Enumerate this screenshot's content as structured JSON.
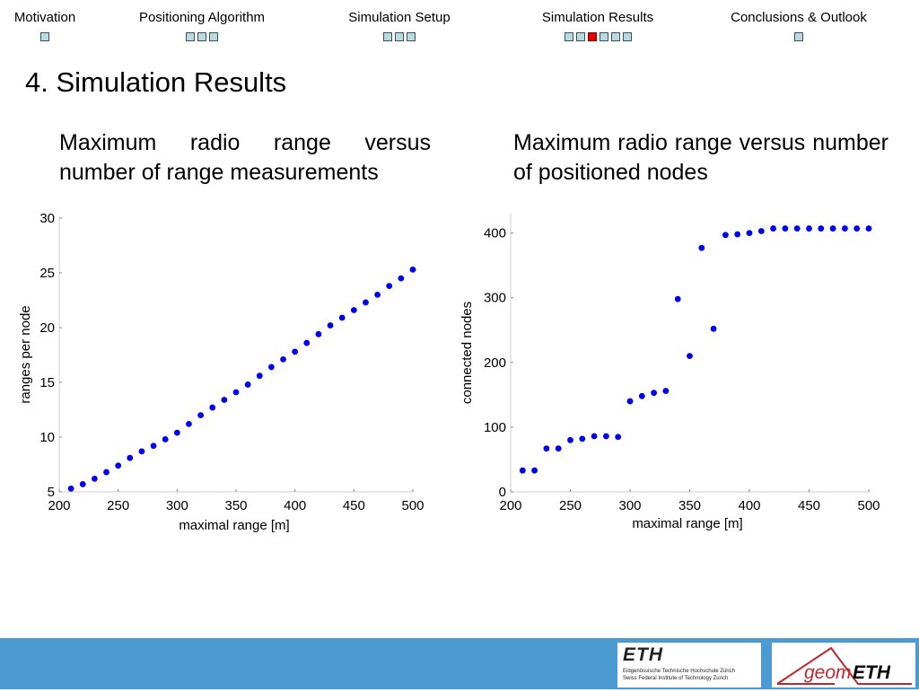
{
  "nav": {
    "sections": [
      {
        "label": "Motivation",
        "dots": 1,
        "active_dot": -1
      },
      {
        "label": "Positioning Algorithm",
        "dots": 3,
        "active_dot": -1
      },
      {
        "label": "Simulation Setup",
        "dots": 3,
        "active_dot": -1
      },
      {
        "label": "Simulation Results",
        "dots": 6,
        "active_dot": 2
      },
      {
        "label": "Conclusions & Outlook",
        "dots": 1,
        "active_dot": -1
      }
    ]
  },
  "page_title": "4. Simulation Results",
  "subtitles": {
    "left": "Maximum radio range versus number of range measurements",
    "right": "Maximum radio range versus number of positioned nodes"
  },
  "colors": {
    "marker": "#0000ee",
    "footer": "#4b9ad2",
    "active_dot": "#e00000",
    "dot": "#bcd9df",
    "geom_red": "#c0282d"
  },
  "chart_data": [
    {
      "type": "scatter",
      "xlabel": "maximal range [m]",
      "ylabel": "ranges per node",
      "xlim": [
        200,
        500
      ],
      "ylim": [
        5,
        30
      ],
      "xticks": [
        200,
        250,
        300,
        350,
        400,
        450,
        500
      ],
      "yticks": [
        5,
        10,
        15,
        20,
        25,
        30
      ],
      "grid": false,
      "series": [
        {
          "x": [
            210,
            220,
            230,
            240,
            250,
            260,
            270,
            280,
            290,
            300,
            310,
            320,
            330,
            340,
            350,
            360,
            370,
            380,
            390,
            400,
            410,
            420,
            430,
            440,
            450,
            460,
            470,
            480,
            490,
            500
          ],
          "y": [
            5.3,
            5.7,
            6.2,
            6.8,
            7.4,
            8.1,
            8.7,
            9.2,
            9.8,
            10.4,
            11.2,
            12.0,
            12.7,
            13.4,
            14.1,
            14.8,
            15.6,
            16.4,
            17.1,
            17.8,
            18.6,
            19.4,
            20.2,
            20.9,
            21.6,
            22.3,
            23.0,
            23.8,
            24.5,
            25.3
          ]
        }
      ]
    },
    {
      "type": "scatter",
      "xlabel": "maximal range [m]",
      "ylabel": "connected nodes",
      "xlim": [
        200,
        500
      ],
      "ylim": [
        0,
        430
      ],
      "xticks": [
        200,
        250,
        300,
        350,
        400,
        450,
        500
      ],
      "yticks": [
        0,
        100,
        200,
        300,
        400
      ],
      "grid": false,
      "series": [
        {
          "x": [
            210,
            220,
            230,
            240,
            250,
            260,
            270,
            280,
            290,
            300,
            310,
            320,
            330,
            340,
            350,
            360,
            370,
            380,
            390,
            400,
            410,
            420,
            430,
            440,
            450,
            460,
            470,
            480,
            490,
            500
          ],
          "y": [
            33,
            33,
            67,
            67,
            80,
            82,
            86,
            86,
            85,
            140,
            148,
            153,
            156,
            298,
            210,
            377,
            252,
            397,
            398,
            400,
            403,
            407,
            407,
            407,
            407,
            407,
            407,
            407,
            407,
            407
          ]
        }
      ]
    }
  ],
  "footer": {
    "eth_logo_text": "ETH",
    "eth_line1": "Eidgenössische Technische Hochschule Zürich",
    "eth_line2": "Swiss Federal Institute of Technology Zurich",
    "geom_logo_a": "geom",
    "geom_logo_b": "ETH"
  }
}
